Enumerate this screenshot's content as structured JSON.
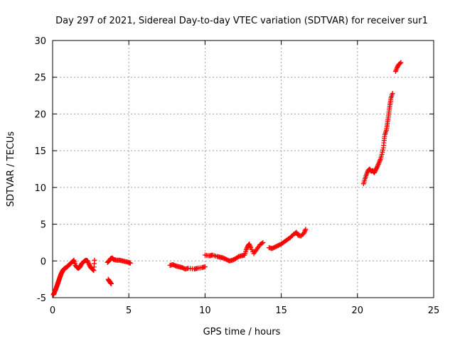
{
  "chart_data": {
    "type": "scatter",
    "title": "Day 297 of 2021, Sidereal Day-to-day VTEC variation (SDTVAR) for receiver sur1",
    "xlabel": "GPS time / hours",
    "ylabel": "SDTVAR / TECUs",
    "xlim": [
      0,
      25
    ],
    "ylim": [
      -5,
      30
    ],
    "xticks": [
      0,
      5,
      10,
      15,
      20,
      25
    ],
    "yticks": [
      -5,
      0,
      5,
      10,
      15,
      20,
      25,
      30
    ],
    "grid": true,
    "marker": "+",
    "color": "#ff0000",
    "series": [
      {
        "name": "sur1",
        "segments": [
          [
            [
              0.05,
              -4.6
            ],
            [
              0.1,
              -4.4
            ],
            [
              0.15,
              -4.1
            ],
            [
              0.2,
              -3.9
            ],
            [
              0.25,
              -3.6
            ],
            [
              0.3,
              -3.3
            ],
            [
              0.35,
              -3.0
            ],
            [
              0.4,
              -2.7
            ],
            [
              0.45,
              -2.4
            ],
            [
              0.5,
              -2.1
            ],
            [
              0.55,
              -1.8
            ],
            [
              0.6,
              -1.6
            ],
            [
              0.65,
              -1.4
            ],
            [
              0.7,
              -1.2
            ],
            [
              0.8,
              -1.0
            ],
            [
              0.9,
              -0.9
            ],
            [
              1.0,
              -0.7
            ],
            [
              1.1,
              -0.5
            ],
            [
              1.2,
              -0.3
            ],
            [
              1.3,
              -0.1
            ],
            [
              1.4,
              0.1
            ],
            [
              1.5,
              -0.6
            ],
            [
              1.6,
              -0.9
            ],
            [
              1.7,
              -1.0
            ],
            [
              1.8,
              -0.8
            ],
            [
              1.9,
              -0.4
            ],
            [
              2.0,
              -0.2
            ],
            [
              2.1,
              0.0
            ],
            [
              2.2,
              0.1
            ],
            [
              2.3,
              0.0
            ],
            [
              2.4,
              -0.5
            ],
            [
              2.5,
              -0.9
            ],
            [
              2.6,
              -1.1
            ],
            [
              2.7,
              -1.3
            ],
            [
              2.75,
              0.1
            ]
          ],
          [
            [
              3.65,
              -2.5
            ],
            [
              3.7,
              -2.7
            ],
            [
              3.75,
              -2.8
            ],
            [
              3.8,
              -3.0
            ],
            [
              3.85,
              -3.1
            ]
          ],
          [
            [
              3.6,
              -0.2
            ],
            [
              3.7,
              0.0
            ],
            [
              3.8,
              0.3
            ],
            [
              3.9,
              0.4
            ],
            [
              4.0,
              0.2
            ],
            [
              4.2,
              0.1
            ],
            [
              4.4,
              0.1
            ],
            [
              4.6,
              0.0
            ],
            [
              4.8,
              -0.1
            ],
            [
              5.0,
              -0.2
            ],
            [
              5.1,
              -0.3
            ]
          ],
          [
            [
              7.7,
              -0.6
            ],
            [
              7.9,
              -0.5
            ],
            [
              8.1,
              -0.7
            ],
            [
              8.3,
              -0.8
            ],
            [
              8.5,
              -0.9
            ],
            [
              8.7,
              -1.1
            ],
            [
              8.9,
              -1.0
            ],
            [
              9.3,
              -1.1
            ],
            [
              9.5,
              -1.0
            ],
            [
              9.8,
              -0.9
            ],
            [
              10.0,
              -0.8
            ]
          ],
          [
            [
              10.0,
              0.8
            ],
            [
              10.3,
              0.7
            ],
            [
              10.5,
              0.8
            ],
            [
              10.8,
              0.6
            ],
            [
              11.0,
              0.5
            ],
            [
              11.2,
              0.4
            ],
            [
              11.4,
              0.2
            ],
            [
              11.6,
              0.0
            ],
            [
              11.8,
              0.1
            ],
            [
              12.0,
              0.3
            ],
            [
              12.2,
              0.6
            ],
            [
              12.4,
              0.7
            ],
            [
              12.6,
              0.8
            ],
            [
              12.7,
              1.5
            ],
            [
              12.8,
              2.0
            ],
            [
              12.9,
              2.3
            ],
            [
              13.0,
              1.8
            ],
            [
              13.2,
              1.0
            ],
            [
              13.4,
              1.6
            ],
            [
              13.6,
              2.2
            ],
            [
              13.8,
              2.5
            ]
          ],
          [
            [
              14.2,
              1.8
            ],
            [
              14.4,
              1.7
            ],
            [
              14.6,
              1.9
            ],
            [
              14.8,
              2.1
            ],
            [
              15.0,
              2.3
            ],
            [
              15.2,
              2.6
            ],
            [
              15.4,
              2.9
            ],
            [
              15.6,
              3.2
            ],
            [
              15.8,
              3.6
            ],
            [
              16.0,
              3.9
            ],
            [
              16.1,
              3.5
            ],
            [
              16.3,
              3.4
            ],
            [
              16.5,
              3.8
            ],
            [
              16.6,
              4.3
            ]
          ],
          [
            [
              20.4,
              10.5
            ],
            [
              20.5,
              11.2
            ],
            [
              20.6,
              11.8
            ],
            [
              20.7,
              12.3
            ],
            [
              20.8,
              12.5
            ],
            [
              20.9,
              12.2
            ],
            [
              21.0,
              12.3
            ],
            [
              21.1,
              12.0
            ],
            [
              21.2,
              12.4
            ],
            [
              21.3,
              12.8
            ],
            [
              21.4,
              13.3
            ],
            [
              21.5,
              13.8
            ],
            [
              21.6,
              14.5
            ],
            [
              21.7,
              15.4
            ],
            [
              21.75,
              16.4
            ],
            [
              21.8,
              17.2
            ],
            [
              21.9,
              17.8
            ],
            [
              21.95,
              18.5
            ],
            [
              22.0,
              19.2
            ],
            [
              22.05,
              20.0
            ],
            [
              22.1,
              20.8
            ],
            [
              22.15,
              21.5
            ],
            [
              22.2,
              22.2
            ],
            [
              22.3,
              22.8
            ]
          ],
          [
            [
              22.5,
              25.8
            ],
            [
              22.6,
              26.3
            ],
            [
              22.7,
              26.7
            ],
            [
              22.85,
              27.0
            ]
          ]
        ]
      }
    ]
  }
}
